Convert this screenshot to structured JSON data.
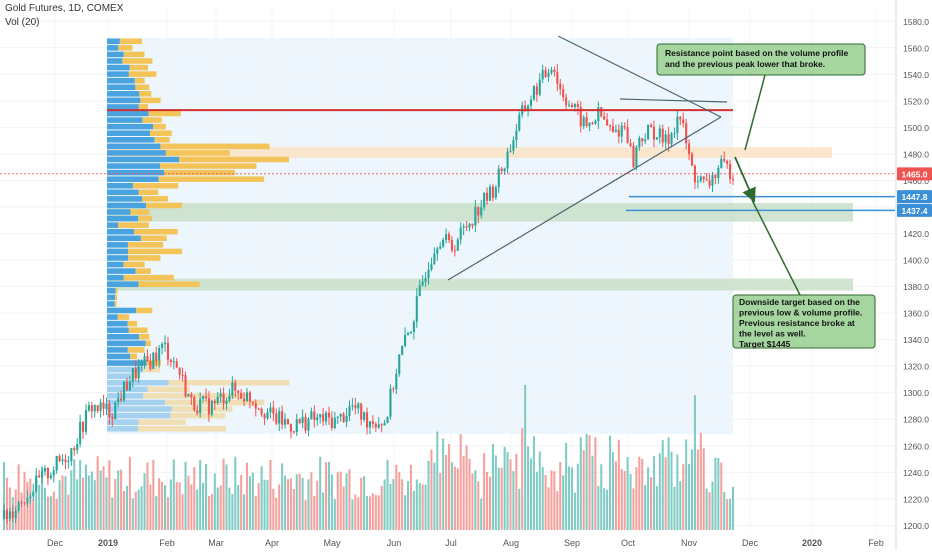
{
  "header": {
    "symbol": "Gold Futures, 1D, COMEX",
    "volume_label": "Vol (20)"
  },
  "colors": {
    "up": "#26a69a",
    "down": "#ef5350",
    "vol_up": "#80cbc4",
    "vol_down": "#f4a09c",
    "profile_blue": "#4aa3df",
    "profile_yellow": "#f2c45a",
    "zone_orange": "#fbe3c4",
    "zone_green": "#c9dfc9",
    "red_line": "#d32f2f",
    "blue_line": "#3b8fd6",
    "trend_line": "#4a6670",
    "note_bg": "#a5d6a0",
    "note_border": "#2e6b2e",
    "price_tag": "#ef5350",
    "level_tag": "#3b8fd6"
  },
  "annotations": {
    "resistance_note": "Resistance point based on the volume profile and the previous peak lower that broke.",
    "target_note_lines": [
      "Downside target based on the",
      "previous low & volume profile.",
      "Previous resistance broke at",
      "the level as well.",
      "Target $1445"
    ]
  },
  "chart_data": {
    "type": "candlestick",
    "title": "Gold Futures, 1D, COMEX",
    "ylim": [
      1195,
      1590
    ],
    "y_ticks": [
      1200,
      1220,
      1240,
      1260,
      1280,
      1300,
      1320,
      1340,
      1360,
      1380,
      1400,
      1420,
      1440,
      1460,
      1480,
      1500,
      1520,
      1540,
      1560,
      1580
    ],
    "x_labels": [
      "Dec",
      "2019",
      "Feb",
      "Mar",
      "Apr",
      "May",
      "Jun",
      "Jul",
      "Aug",
      "Sep",
      "Oct",
      "Nov",
      "Dec",
      "2020",
      "Feb"
    ],
    "last_price": "1465.0",
    "levels": [
      {
        "label": "1447.8",
        "value": 1447.8
      },
      {
        "label": "1437.4",
        "value": 1437.4
      }
    ],
    "resistance_level": 1513,
    "zones": [
      {
        "name": "resistance-zone",
        "from": 1477,
        "to": 1485
      },
      {
        "name": "support-zone",
        "from": 1429,
        "to": 1443
      },
      {
        "name": "low-zone",
        "from": 1377,
        "to": 1386
      }
    ],
    "close_path": [
      [
        0,
        1205
      ],
      [
        10,
        1232
      ],
      [
        20,
        1256
      ],
      [
        26,
        1290
      ],
      [
        32,
        1285
      ],
      [
        38,
        1312
      ],
      [
        44,
        1325
      ],
      [
        48,
        1335
      ],
      [
        52,
        1318
      ],
      [
        56,
        1292
      ],
      [
        62,
        1290
      ],
      [
        68,
        1302
      ],
      [
        74,
        1296
      ],
      [
        80,
        1282
      ],
      [
        86,
        1275
      ],
      [
        92,
        1280
      ],
      [
        100,
        1279
      ],
      [
        104,
        1290
      ],
      [
        108,
        1280
      ],
      [
        114,
        1278
      ],
      [
        118,
        1325
      ],
      [
        122,
        1352
      ],
      [
        126,
        1392
      ],
      [
        130,
        1418
      ],
      [
        134,
        1410
      ],
      [
        138,
        1425
      ],
      [
        142,
        1440
      ],
      [
        146,
        1452
      ],
      [
        150,
        1475
      ],
      [
        154,
        1505
      ],
      [
        158,
        1525
      ],
      [
        162,
        1540
      ],
      [
        164,
        1550
      ],
      [
        166,
        1530
      ],
      [
        170,
        1515
      ],
      [
        174,
        1500
      ],
      [
        178,
        1510
      ],
      [
        182,
        1495
      ],
      [
        186,
        1502
      ],
      [
        188,
        1472
      ],
      [
        190,
        1492
      ],
      [
        194,
        1498
      ],
      [
        198,
        1488
      ],
      [
        202,
        1510
      ],
      [
        206,
        1465
      ],
      [
        210,
        1455
      ],
      [
        214,
        1470
      ],
      [
        218,
        1467
      ]
    ]
  }
}
